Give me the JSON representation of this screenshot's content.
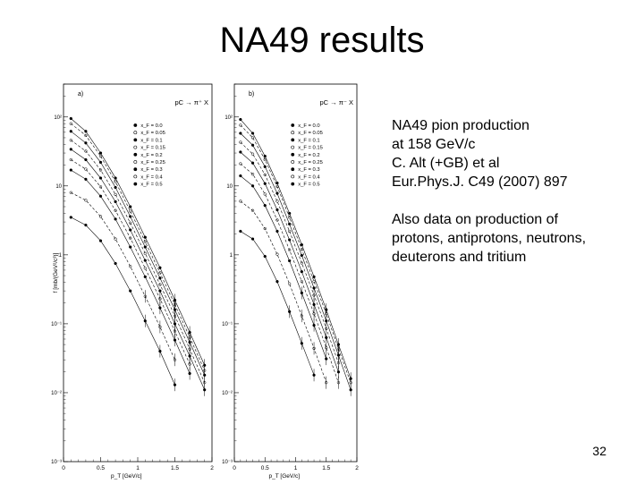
{
  "slide": {
    "title": "NA49 results",
    "page_number": "32",
    "notes": {
      "line1": "NA49 pion production",
      "line2": "at 158 GeV/c",
      "line3": "C. Alt (+GB) et al",
      "line4": "Eur.Phys.J. C49 (2007) 897",
      "line5": "Also data on production of",
      "line6": "protons, antiprotons, neutrons,",
      "line7": "deuterons and tritium"
    }
  },
  "figure": {
    "ylabel": "f [mb/(GeV²/c³)]",
    "xlabel": "p_T [GeV/c]",
    "y_ticks": [
      "10²",
      "10",
      "1",
      "10⁻¹",
      "10⁻²",
      "10⁻³"
    ],
    "x_ticks": [
      "0",
      "0.5",
      "1",
      "1.5",
      "2"
    ],
    "panels": [
      {
        "tag": "a)",
        "reaction": "pC → π⁺ X",
        "legend": [
          "x_F = 0.0",
          "x_F = 0.05",
          "x_F = 0.1",
          "x_F = 0.15",
          "x_F = 0.2",
          "x_F = 0.25",
          "x_F = 0.3",
          "x_F = 0.4",
          "x_F = 0.5"
        ]
      },
      {
        "tag": "b)",
        "reaction": "pC → π⁻ X",
        "legend": [
          "x_F = 0.0",
          "x_F = 0.05",
          "x_F = 0.1",
          "x_F = 0.15",
          "x_F = 0.2",
          "x_F = 0.25",
          "x_F = 0.3",
          "x_F = 0.4",
          "x_F = 0.5"
        ]
      }
    ]
  },
  "chart_data": [
    {
      "type": "scatter",
      "title": "a)",
      "subtitle": "pC → π⁺ X",
      "xlabel": "p_T [GeV/c]",
      "ylabel": "f [mb/(GeV²/c³)]",
      "xlim": [
        0,
        2
      ],
      "ylim": [
        0.001,
        300
      ],
      "yscale": "log",
      "series": [
        {
          "name": "x_F = 0.0",
          "x": [
            0.1,
            0.3,
            0.5,
            0.7,
            0.9,
            1.1,
            1.3,
            1.5,
            1.7,
            1.9
          ],
          "y": [
            95,
            62,
            30,
            13,
            5,
            1.8,
            0.65,
            0.22,
            0.075,
            0.025
          ]
        },
        {
          "name": "x_F = 0.05",
          "x": [
            0.1,
            0.3,
            0.5,
            0.7,
            0.9,
            1.1,
            1.3,
            1.5,
            1.7,
            1.9
          ],
          "y": [
            80,
            54,
            27,
            11.5,
            4.3,
            1.55,
            0.55,
            0.19,
            0.064,
            0.021
          ]
        },
        {
          "name": "x_F = 0.1",
          "x": [
            0.1,
            0.3,
            0.5,
            0.7,
            0.9,
            1.1,
            1.3,
            1.5,
            1.7,
            1.9
          ],
          "y": [
            62,
            42,
            22,
            9.5,
            3.6,
            1.3,
            0.46,
            0.16,
            0.054,
            0.018
          ]
        },
        {
          "name": "x_F = 0.15",
          "x": [
            0.1,
            0.3,
            0.5,
            0.7,
            0.9,
            1.1,
            1.3,
            1.5,
            1.7,
            1.9
          ],
          "y": [
            46,
            32,
            17,
            7.5,
            2.9,
            1.05,
            0.37,
            0.13,
            0.043,
            0.014
          ]
        },
        {
          "name": "x_F = 0.2",
          "x": [
            0.1,
            0.3,
            0.5,
            0.7,
            0.9,
            1.1,
            1.3,
            1.5,
            1.7,
            1.9
          ],
          "y": [
            34,
            24,
            13,
            5.9,
            2.3,
            0.83,
            0.3,
            0.1,
            0.034,
            0.011
          ]
        },
        {
          "name": "x_F = 0.25",
          "x": [
            0.1,
            0.3,
            0.5,
            0.7,
            0.9,
            1.1,
            1.3,
            1.5,
            1.7
          ],
          "y": [
            24,
            17.5,
            9.7,
            4.4,
            1.75,
            0.64,
            0.23,
            0.078,
            0.026
          ]
        },
        {
          "name": "x_F = 0.3",
          "x": [
            0.1,
            0.3,
            0.5,
            0.7,
            0.9,
            1.1,
            1.3,
            1.5,
            1.7
          ],
          "y": [
            17,
            12.5,
            7.1,
            3.3,
            1.3,
            0.48,
            0.17,
            0.058,
            0.019
          ]
        },
        {
          "name": "x_F = 0.4",
          "x": [
            0.1,
            0.3,
            0.5,
            0.7,
            0.9,
            1.1,
            1.3,
            1.5
          ],
          "y": [
            8,
            6.2,
            3.6,
            1.7,
            0.68,
            0.25,
            0.09,
            0.03
          ]
        },
        {
          "name": "x_F = 0.5",
          "x": [
            0.1,
            0.3,
            0.5,
            0.7,
            0.9,
            1.1,
            1.3,
            1.5
          ],
          "y": [
            3.5,
            2.7,
            1.6,
            0.75,
            0.3,
            0.11,
            0.04,
            0.013
          ]
        }
      ]
    },
    {
      "type": "scatter",
      "title": "b)",
      "subtitle": "pC → π⁻ X",
      "xlabel": "p_T [GeV/c]",
      "ylabel": "",
      "xlim": [
        0,
        2
      ],
      "ylim": [
        0.001,
        300
      ],
      "yscale": "log",
      "series": [
        {
          "name": "x_F = 0.0",
          "x": [
            0.1,
            0.3,
            0.5,
            0.7,
            0.9,
            1.1,
            1.3,
            1.5,
            1.7,
            1.9
          ],
          "y": [
            92,
            58,
            27,
            11,
            4,
            1.4,
            0.48,
            0.16,
            0.05,
            0.016
          ]
        },
        {
          "name": "x_F = 0.05",
          "x": [
            0.1,
            0.3,
            0.5,
            0.7,
            0.9,
            1.1,
            1.3,
            1.5,
            1.7,
            1.9
          ],
          "y": [
            76,
            50,
            24,
            9.8,
            3.5,
            1.2,
            0.41,
            0.14,
            0.043,
            0.014
          ]
        },
        {
          "name": "x_F = 0.1",
          "x": [
            0.1,
            0.3,
            0.5,
            0.7,
            0.9,
            1.1,
            1.3,
            1.5,
            1.7,
            1.9
          ],
          "y": [
            58,
            39,
            19,
            7.8,
            2.8,
            0.98,
            0.33,
            0.11,
            0.035,
            0.011
          ]
        },
        {
          "name": "x_F = 0.15",
          "x": [
            0.1,
            0.3,
            0.5,
            0.7,
            0.9,
            1.1,
            1.3,
            1.5,
            1.7
          ],
          "y": [
            43,
            29,
            14.5,
            6,
            2.2,
            0.76,
            0.26,
            0.085,
            0.027
          ]
        },
        {
          "name": "x_F = 0.2",
          "x": [
            0.1,
            0.3,
            0.5,
            0.7,
            0.9,
            1.1,
            1.3,
            1.5,
            1.7
          ],
          "y": [
            31,
            21.5,
            10.8,
            4.5,
            1.65,
            0.57,
            0.19,
            0.063,
            0.02
          ]
        },
        {
          "name": "x_F = 0.25",
          "x": [
            0.1,
            0.3,
            0.5,
            0.7,
            0.9,
            1.1,
            1.3,
            1.5,
            1.7
          ],
          "y": [
            21,
            14.8,
            7.6,
            3.2,
            1.18,
            0.41,
            0.14,
            0.045,
            0.014
          ]
        },
        {
          "name": "x_F = 0.3",
          "x": [
            0.1,
            0.3,
            0.5,
            0.7,
            0.9,
            1.1,
            1.3,
            1.5
          ],
          "y": [
            14,
            10,
            5.2,
            2.2,
            0.82,
            0.28,
            0.095,
            0.031
          ]
        },
        {
          "name": "x_F = 0.4",
          "x": [
            0.1,
            0.3,
            0.5,
            0.7,
            0.9,
            1.1,
            1.3,
            1.5
          ],
          "y": [
            6,
            4.4,
            2.4,
            1.02,
            0.38,
            0.13,
            0.044,
            0.014
          ]
        },
        {
          "name": "x_F = 0.5",
          "x": [
            0.1,
            0.3,
            0.5,
            0.7,
            0.9,
            1.1,
            1.3
          ],
          "y": [
            2.2,
            1.7,
            0.95,
            0.41,
            0.15,
            0.052,
            0.018
          ]
        }
      ]
    }
  ]
}
